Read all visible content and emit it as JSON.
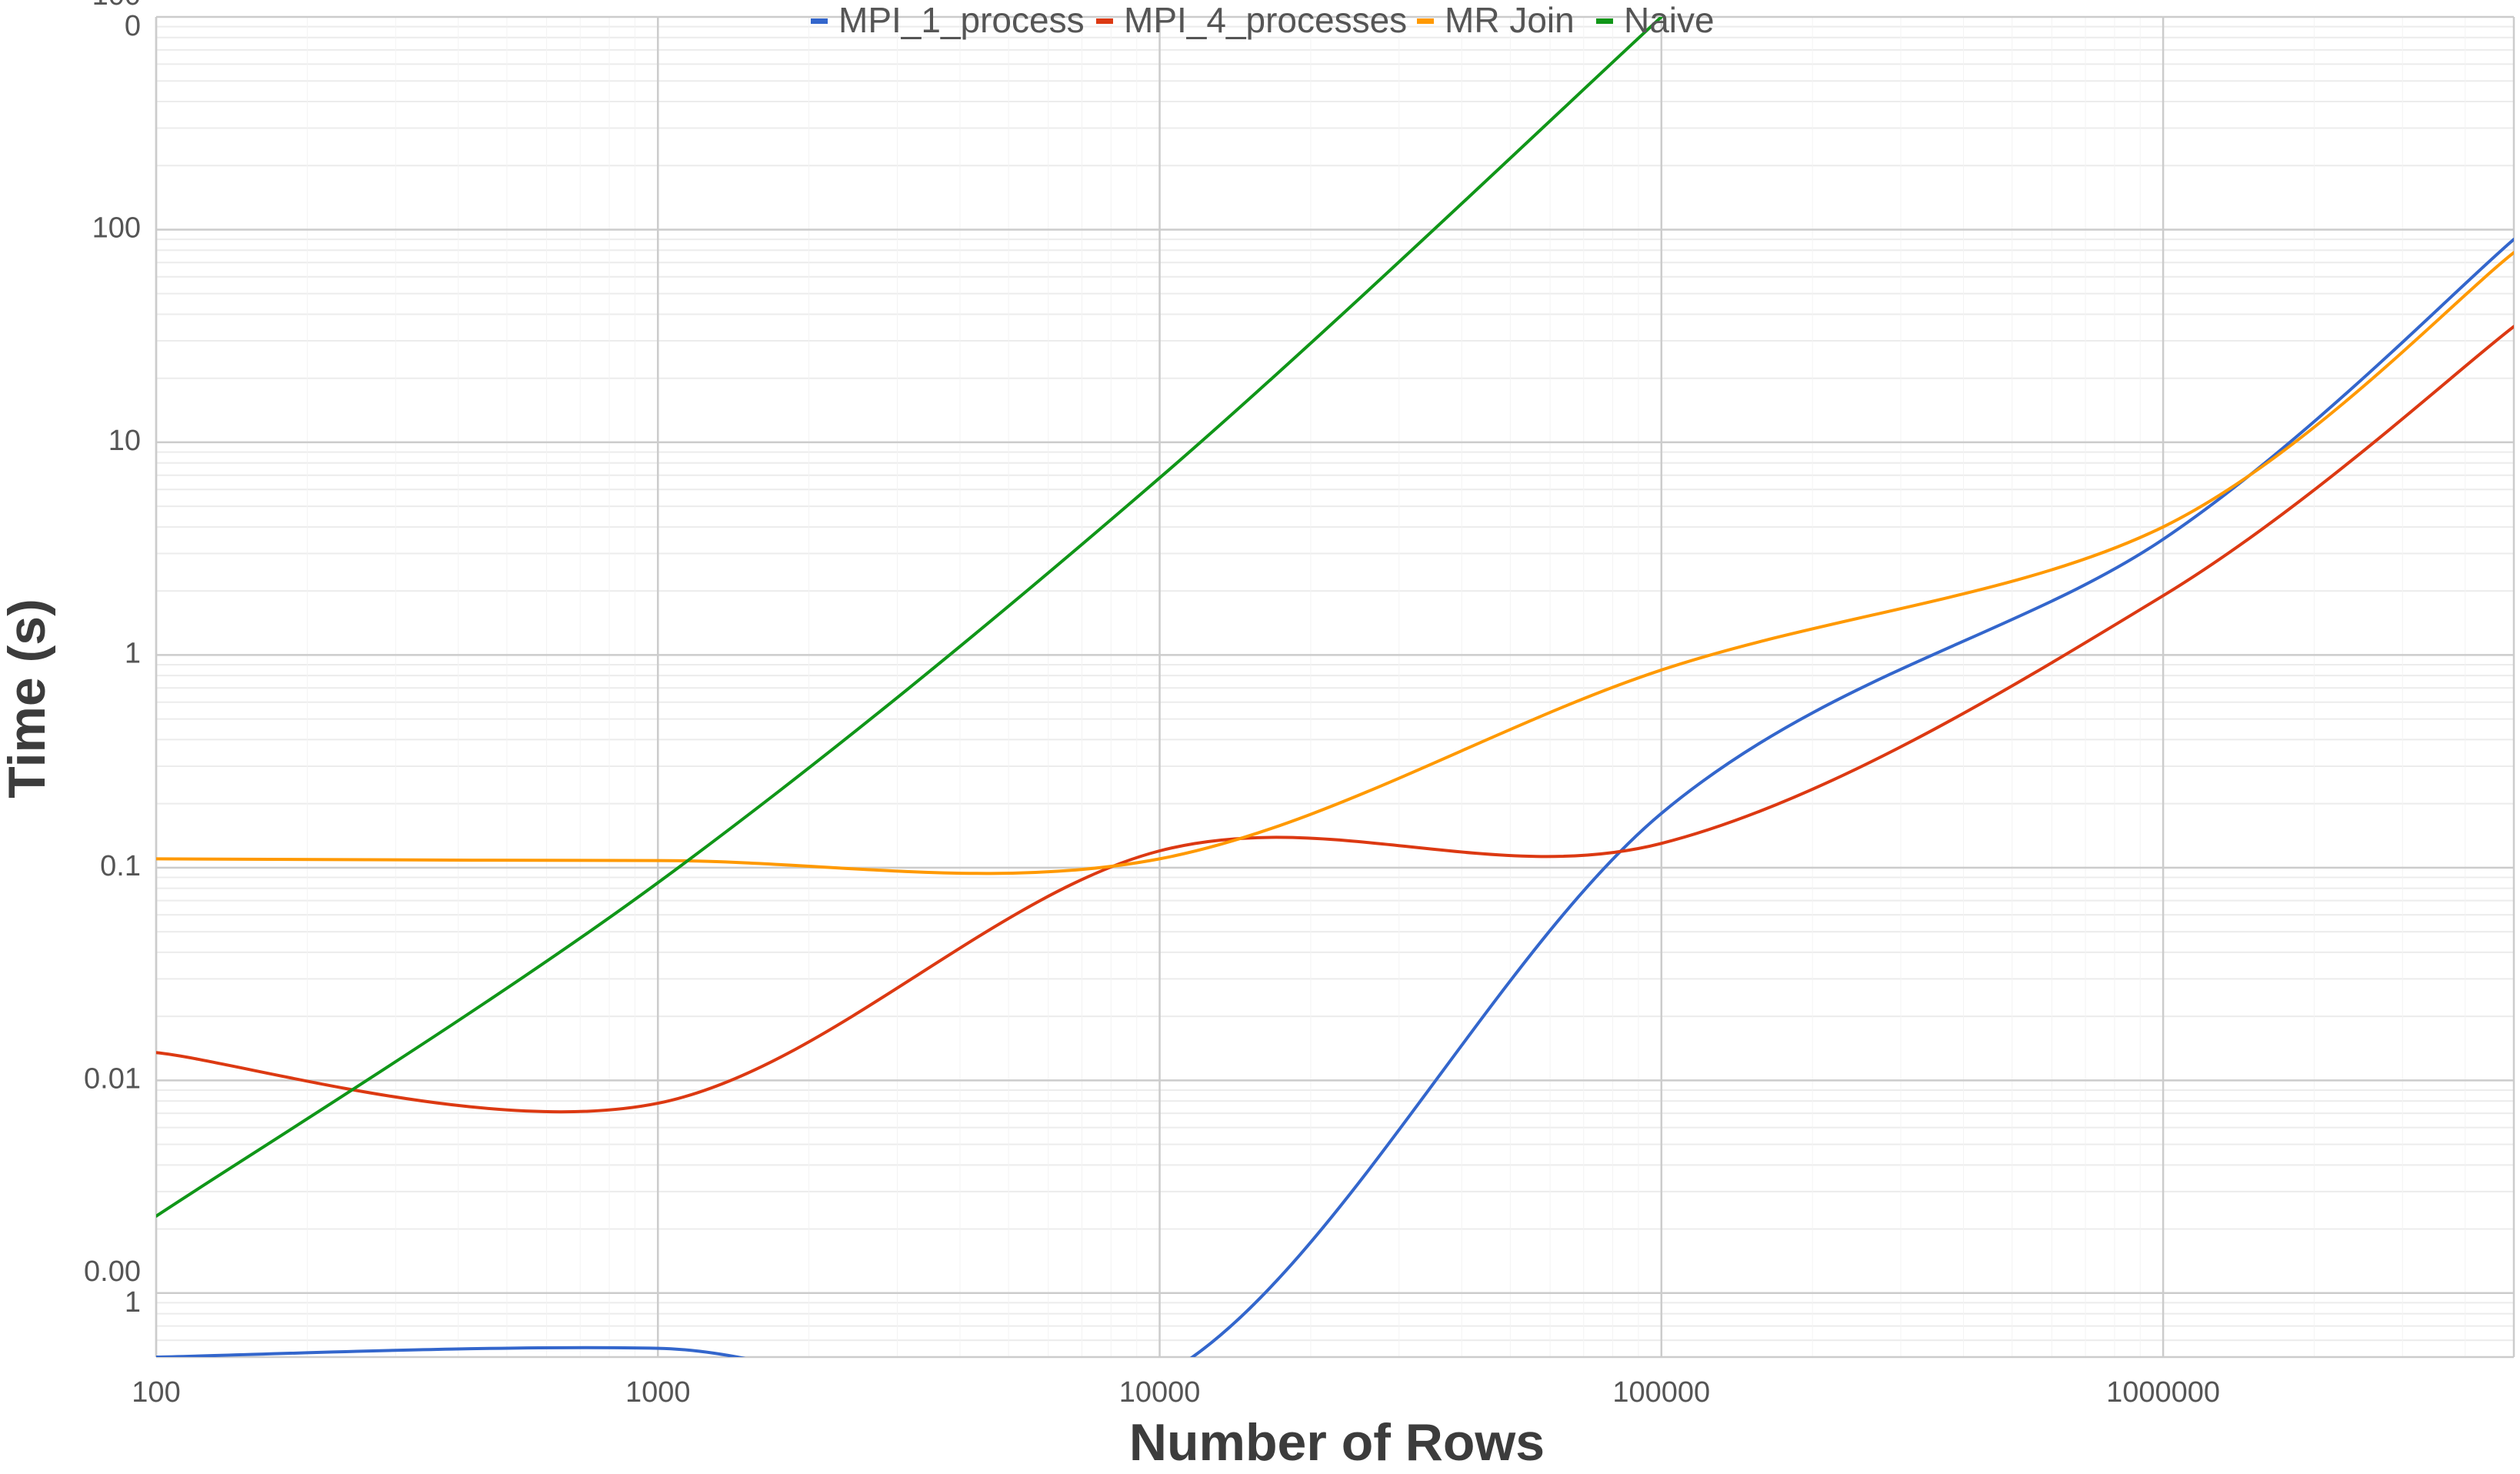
{
  "chart_data": {
    "type": "line",
    "title": "",
    "xlabel": "Number of Rows",
    "ylabel": "Time (s)",
    "x_scale": "log",
    "y_scale": "log",
    "xlim": [
      100,
      5000000
    ],
    "ylim": [
      0.0005,
      1000
    ],
    "grid": true,
    "legend": "top",
    "x_ticks": [
      "100",
      "1000",
      "10000",
      "100000",
      "1000000"
    ],
    "y_ticks": [
      {
        "value": 1000,
        "label": [
          "100",
          "0"
        ]
      },
      {
        "value": 100,
        "label": [
          "100"
        ]
      },
      {
        "value": 10,
        "label": [
          "10"
        ]
      },
      {
        "value": 1,
        "label": [
          "1"
        ]
      },
      {
        "value": 0.1,
        "label": [
          "0.1"
        ]
      },
      {
        "value": 0.01,
        "label": [
          "0.01"
        ]
      },
      {
        "value": 0.001,
        "label": [
          "0.00",
          "1"
        ]
      }
    ],
    "series": [
      {
        "name": "MPI_1_process",
        "color": "#3366cc",
        "x": [
          100,
          1000,
          10000,
          100000,
          1000000,
          5000000
        ],
        "y": [
          0.0005,
          0.00055,
          0.0004,
          0.18,
          3.5,
          90
        ]
      },
      {
        "name": "MPI_4_processes",
        "color": "#dc3912",
        "x": [
          100,
          1000,
          10000,
          100000,
          1000000,
          5000000
        ],
        "y": [
          0.0135,
          0.0078,
          0.12,
          0.13,
          1.9,
          35
        ]
      },
      {
        "name": "MR Join",
        "color": "#ff9900",
        "x": [
          100,
          1000,
          10000,
          100000,
          1000000,
          5000000
        ],
        "y": [
          0.11,
          0.108,
          0.11,
          0.85,
          4.0,
          78
        ]
      },
      {
        "name": "Naive",
        "color": "#109618",
        "x": [
          100,
          1000,
          10000,
          100000
        ],
        "y": [
          0.0023,
          0.085,
          6.8,
          1000
        ]
      }
    ]
  }
}
